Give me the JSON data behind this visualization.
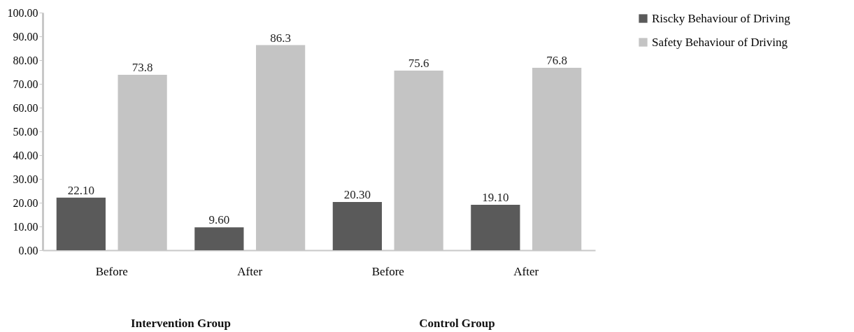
{
  "chart_data": {
    "type": "bar",
    "categories": [
      "Before",
      "After",
      "Before",
      "After"
    ],
    "series": [
      {
        "name": "Riscky Behaviour of Driving",
        "color": "#5a5a5a",
        "values": [
          22.1,
          9.6,
          20.3,
          19.1
        ],
        "value_labels": [
          "22.10",
          "9.60",
          "20.30",
          "19.10"
        ]
      },
      {
        "name": "Safety Behaviour of Driving",
        "color": "#c4c4c4",
        "values": [
          73.8,
          86.3,
          75.6,
          76.8
        ],
        "value_labels": [
          "73.8",
          "86.3",
          "75.6",
          "76.8"
        ]
      }
    ],
    "ylim": [
      0,
      100
    ],
    "yticks": [
      {
        "value": 0,
        "label": "0.00"
      },
      {
        "value": 10,
        "label": "10.00"
      },
      {
        "value": 20,
        "label": "20.00"
      },
      {
        "value": 30,
        "label": "30.00"
      },
      {
        "value": 40,
        "label": "40.00"
      },
      {
        "value": 50,
        "label": "50.00"
      },
      {
        "value": 60,
        "label": "60.00"
      },
      {
        "value": 70,
        "label": "70.00"
      },
      {
        "value": 80,
        "label": "80.00"
      },
      {
        "value": 90,
        "label": "90.00"
      },
      {
        "value": 100,
        "label": "100.00"
      }
    ],
    "annotations": [
      "Intervention Group",
      "Control Group"
    ],
    "grid": false,
    "legend": "right"
  }
}
